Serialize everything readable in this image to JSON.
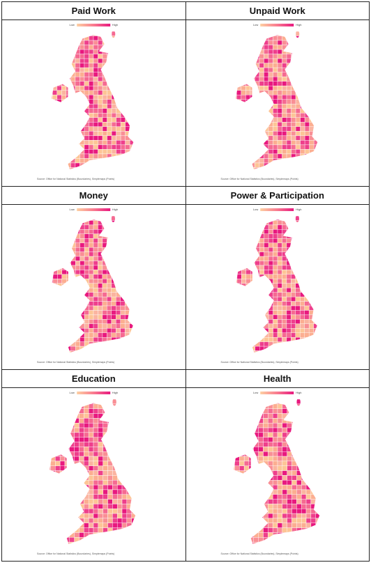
{
  "panels": [
    {
      "title": "Paid Work",
      "legend_low": "Low",
      "legend_high": "High",
      "source": "Source: Office for National Statistics (Boundaries), Simplemaps (Points)"
    },
    {
      "title": "Unpaid Work",
      "legend_low": "Low",
      "legend_high": "High",
      "source": "Source: Office for National Statistics (Boundaries), Simplemaps (Points)"
    },
    {
      "title": "Money",
      "legend_low": "Low",
      "legend_high": "High",
      "source": "Source: Office for National Statistics (Boundaries), Simplemaps (Points)"
    },
    {
      "title": "Power & Participation",
      "legend_low": "Low",
      "legend_high": "High",
      "source": "Source: Office for National Statistics (Boundaries), Simplemaps (Points)"
    },
    {
      "title": "Education",
      "legend_low": "Low",
      "legend_high": "High",
      "source": "Source: Office for National Statistics (Boundaries), Simplemaps (Points)"
    },
    {
      "title": "Health",
      "legend_low": "Low",
      "legend_high": "High",
      "source": "Source: Office for National Statistics (Boundaries), Simplemaps (Points)"
    }
  ]
}
